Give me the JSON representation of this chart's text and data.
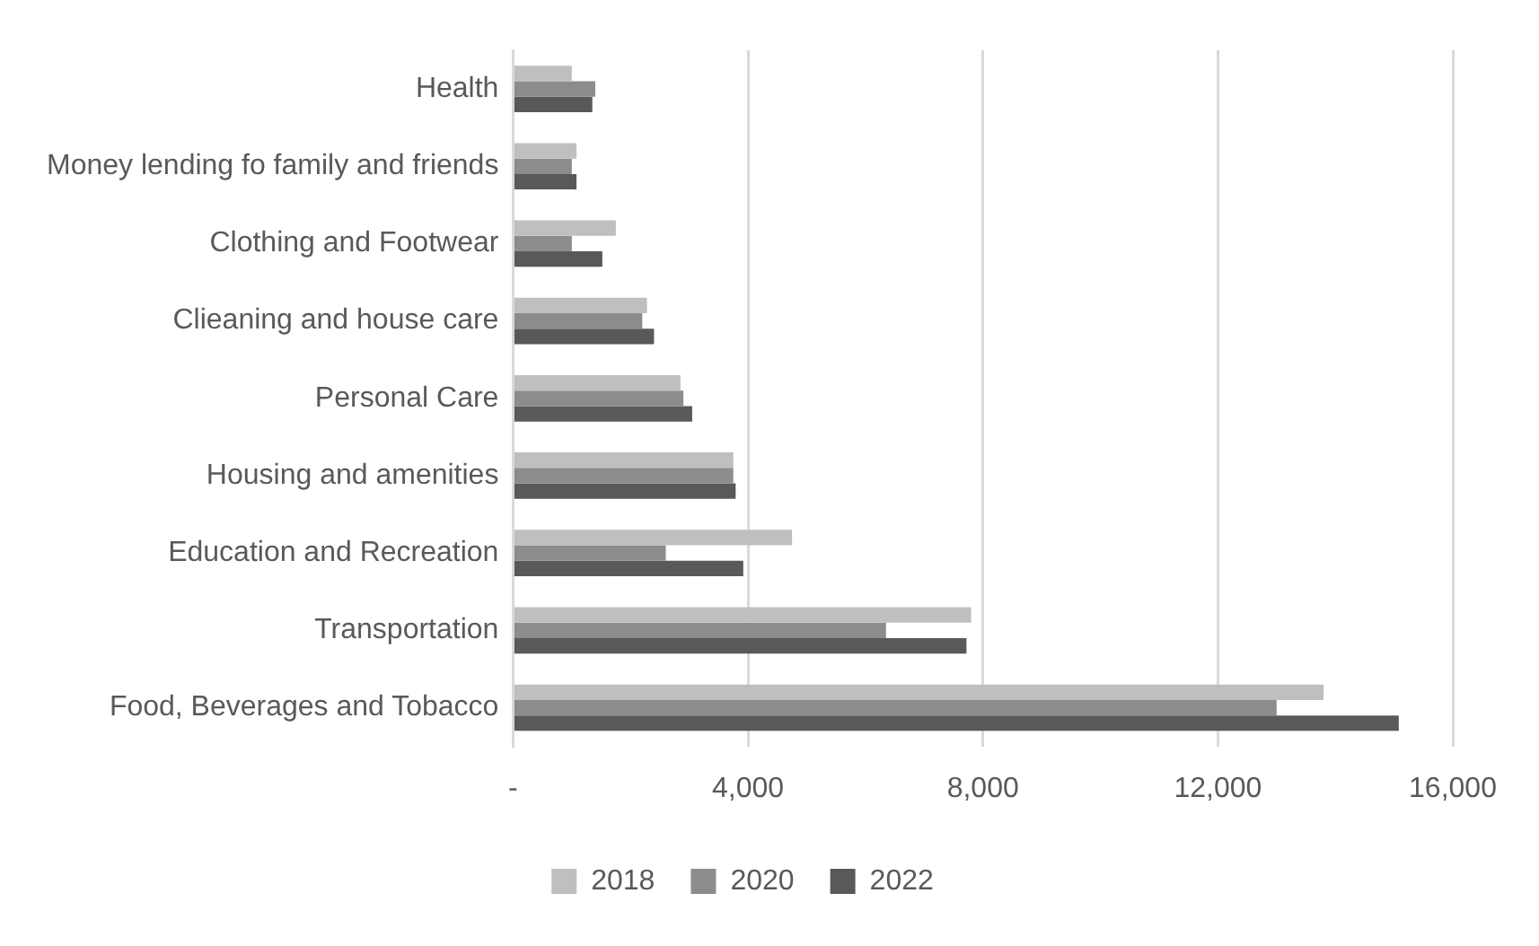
{
  "chart_data": {
    "type": "bar",
    "orientation": "horizontal",
    "categories": [
      "Health",
      "Money lending fo family and friends",
      "Clothing and Footwear",
      "Clieaning and house care",
      "Personal Care",
      "Housing and amenities",
      "Education and Recreation",
      "Transportation",
      "Food, Beverages and Tobacco"
    ],
    "series": [
      {
        "name": "2018",
        "color": "#bfbfbf",
        "values": [
          1000,
          1080,
          1750,
          2280,
          2850,
          3750,
          4750,
          7800,
          13800
        ]
      },
      {
        "name": "2020",
        "color": "#8c8c8c",
        "values": [
          1400,
          1000,
          1000,
          2200,
          2900,
          3750,
          2600,
          6350,
          13000
        ]
      },
      {
        "name": "2022",
        "color": "#595959",
        "values": [
          1350,
          1080,
          1520,
          2400,
          3050,
          3790,
          3920,
          7720,
          15080
        ]
      }
    ],
    "xlim": [
      0,
      16000
    ],
    "xticks": [
      {
        "value": 0,
        "label": "-"
      },
      {
        "value": 4000,
        "label": "4,000"
      },
      {
        "value": 8000,
        "label": "8,000"
      },
      {
        "value": 12000,
        "label": "12,000"
      },
      {
        "value": 16000,
        "label": "16,000"
      }
    ],
    "grid": "x",
    "legend": "bottom"
  }
}
